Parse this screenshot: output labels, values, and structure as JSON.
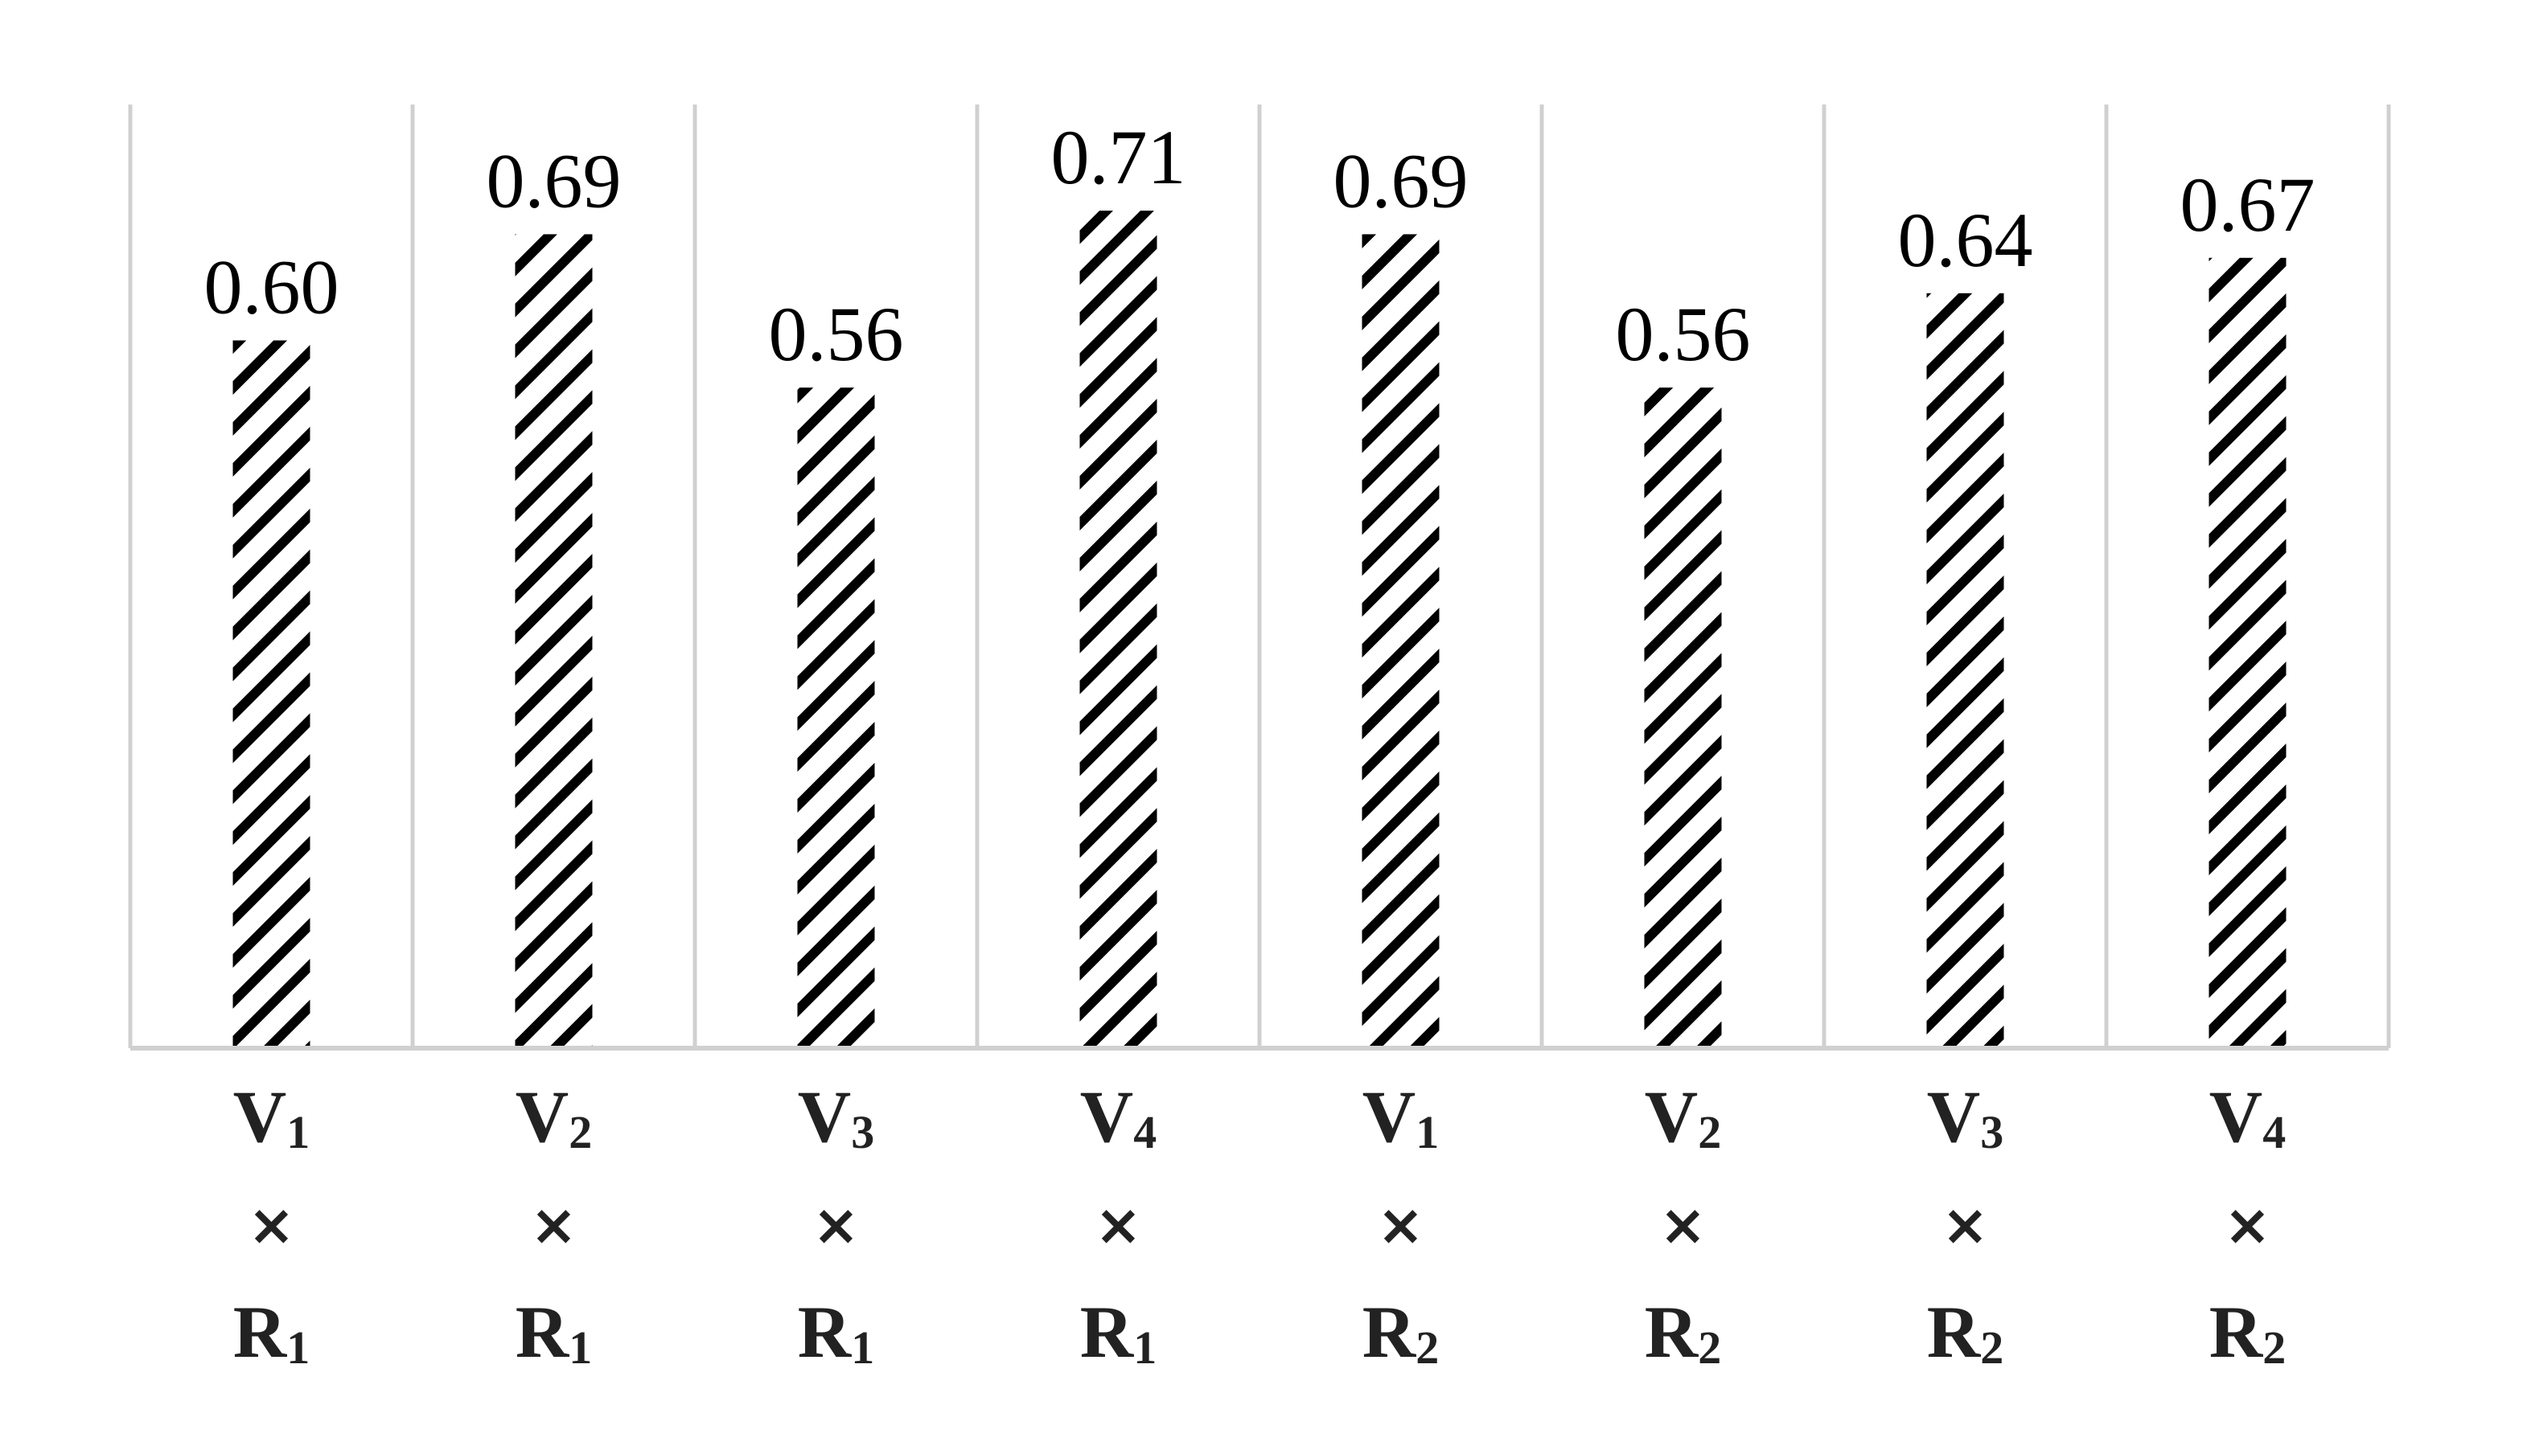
{
  "chart_data": {
    "type": "bar",
    "categories": [
      {
        "v": "V",
        "v_sub": "1",
        "x": "×",
        "r": "R",
        "r_sub": "1"
      },
      {
        "v": "V",
        "v_sub": "2",
        "x": "×",
        "r": "R",
        "r_sub": "1"
      },
      {
        "v": "V",
        "v_sub": "3",
        "x": "×",
        "r": "R",
        "r_sub": "1"
      },
      {
        "v": "V",
        "v_sub": "4",
        "x": "×",
        "r": "R",
        "r_sub": "1"
      },
      {
        "v": "V",
        "v_sub": "1",
        "x": "×",
        "r": "R",
        "r_sub": "2"
      },
      {
        "v": "V",
        "v_sub": "2",
        "x": "×",
        "r": "R",
        "r_sub": "2"
      },
      {
        "v": "V",
        "v_sub": "3",
        "x": "×",
        "r": "R",
        "r_sub": "2"
      },
      {
        "v": "V",
        "v_sub": "4",
        "x": "×",
        "r": "R",
        "r_sub": "2"
      }
    ],
    "values": [
      0.6,
      0.69,
      0.56,
      0.71,
      0.69,
      0.56,
      0.64,
      0.67
    ],
    "value_labels": [
      "0.60",
      "0.69",
      "0.56",
      "0.71",
      "0.69",
      "0.56",
      "0.64",
      "0.67"
    ],
    "ylim": [
      0,
      0.8
    ],
    "grid": "vertical separators",
    "legend": "none",
    "fill": "black diagonal hatch on white",
    "colors": {
      "bar_hatch": "#000000",
      "grid": "#d0d0d0",
      "label": "#000000"
    }
  }
}
